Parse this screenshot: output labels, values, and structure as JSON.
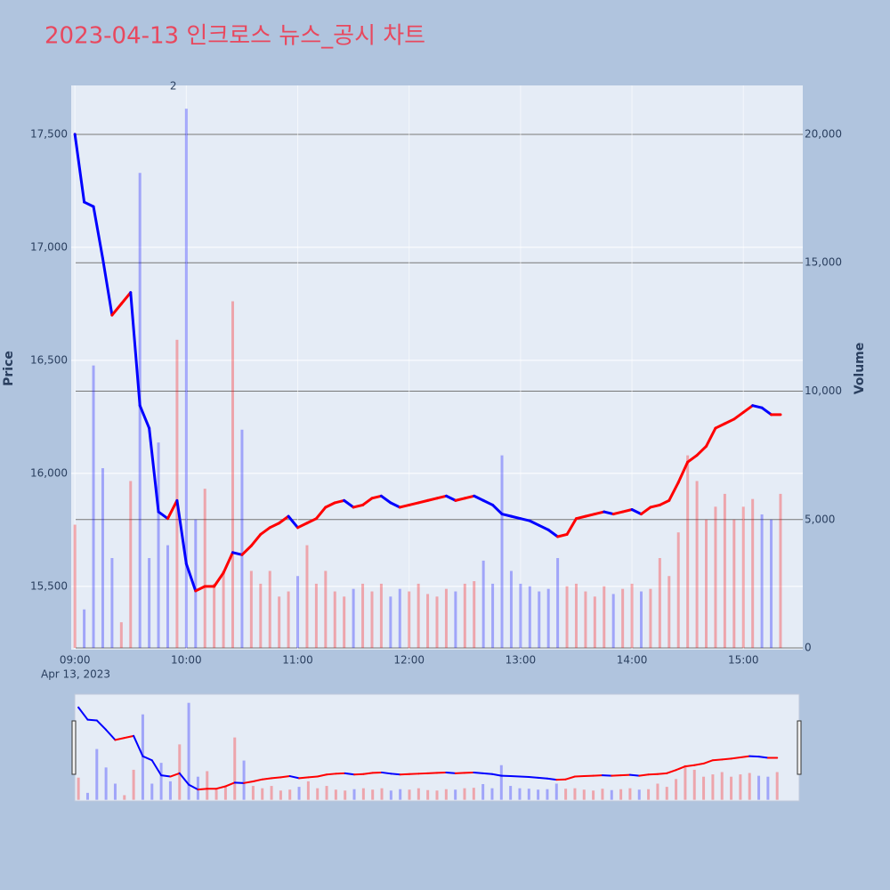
{
  "chart_data": {
    "type": "price-volume",
    "title": "2023-04-13 인크로스 뉴스_공시 차트",
    "ylabel": "Price",
    "y2label": "Volume",
    "x_date_label": "Apr 13, 2023",
    "annotation": {
      "x": "09:53",
      "text": "2"
    },
    "up_color": "#ff0000",
    "down_color": "#0000ff",
    "x": [
      "09:00",
      "09:05",
      "09:10",
      "09:15",
      "09:20",
      "09:25",
      "09:30",
      "09:35",
      "09:40",
      "09:45",
      "09:50",
      "09:55",
      "10:00",
      "10:05",
      "10:10",
      "10:15",
      "10:20",
      "10:25",
      "10:30",
      "10:35",
      "10:40",
      "10:45",
      "10:50",
      "10:55",
      "11:00",
      "11:05",
      "11:10",
      "11:15",
      "11:20",
      "11:25",
      "11:30",
      "11:35",
      "11:40",
      "11:45",
      "11:50",
      "11:55",
      "12:00",
      "12:05",
      "12:10",
      "12:15",
      "12:20",
      "12:25",
      "12:30",
      "12:35",
      "12:40",
      "12:45",
      "12:50",
      "12:55",
      "13:00",
      "13:05",
      "13:10",
      "13:15",
      "13:20",
      "13:25",
      "13:30",
      "13:35",
      "13:40",
      "13:45",
      "13:50",
      "13:55",
      "14:00",
      "14:05",
      "14:10",
      "14:15",
      "14:20",
      "14:25",
      "14:30",
      "14:35",
      "14:40",
      "14:45",
      "14:50",
      "14:55",
      "15:00",
      "15:05",
      "15:10",
      "15:15",
      "15:20"
    ],
    "values": [
      17500,
      17200,
      17180,
      16950,
      16700,
      16750,
      16800,
      16300,
      16200,
      15830,
      15800,
      15880,
      15600,
      15480,
      15500,
      15500,
      15560,
      15650,
      15640,
      15680,
      15730,
      15760,
      15780,
      15810,
      15760,
      15780,
      15800,
      15850,
      15870,
      15880,
      15850,
      15860,
      15890,
      15900,
      15870,
      15850,
      15860,
      15870,
      15880,
      15890,
      15900,
      15880,
      15890,
      15900,
      15880,
      15860,
      15820,
      15810,
      15800,
      15790,
      15770,
      15750,
      15720,
      15730,
      15800,
      15810,
      15820,
      15830,
      15820,
      15830,
      15840,
      15820,
      15850,
      15860,
      15880,
      15960,
      16050,
      16080,
      16120,
      16200,
      16220,
      16240,
      16270,
      16300,
      16290,
      16260,
      16260
    ],
    "volume": [
      4800,
      1500,
      11000,
      7000,
      3500,
      1000,
      6500,
      18500,
      3500,
      8000,
      4000,
      12000,
      21000,
      5000,
      6200,
      2500,
      3000,
      13500,
      8500,
      3000,
      2500,
      3000,
      2000,
      2200,
      2800,
      4000,
      2500,
      3000,
      2200,
      2000,
      2300,
      2500,
      2200,
      2500,
      2000,
      2300,
      2200,
      2500,
      2100,
      2000,
      2300,
      2200,
      2500,
      2600,
      3400,
      2500,
      7500,
      3000,
      2500,
      2400,
      2200,
      2300,
      3500,
      2400,
      2500,
      2200,
      2000,
      2400,
      2100,
      2300,
      2500,
      2200,
      2300,
      3500,
      2800,
      4500,
      7500,
      6500,
      5000,
      5500,
      6000,
      5000,
      5500,
      5800,
      5200,
      5000,
      6000
    ],
    "xlim": [
      "08:58",
      "15:32"
    ],
    "xticks": [
      "09:00",
      "10:00",
      "11:00",
      "12:00",
      "13:00",
      "14:00",
      "15:00"
    ],
    "ylim": [
      15220,
      17716
    ],
    "yticks": [
      {
        "value": 15500,
        "label": "15,500"
      },
      {
        "value": 16000,
        "label": "16,000"
      },
      {
        "value": 16500,
        "label": "16,500"
      },
      {
        "value": 17000,
        "label": "17,000"
      },
      {
        "value": 17500,
        "label": "17,500"
      }
    ],
    "y2lim": [
      -69,
      21906
    ],
    "y2ticks": [
      0,
      {
        "value": 5000,
        "label": "5,000"
      },
      {
        "value": 10000,
        "label": "10,000"
      },
      {
        "value": 15000,
        "label": "15,000"
      },
      {
        "value": 20000,
        "label": "20,000"
      }
    ]
  }
}
